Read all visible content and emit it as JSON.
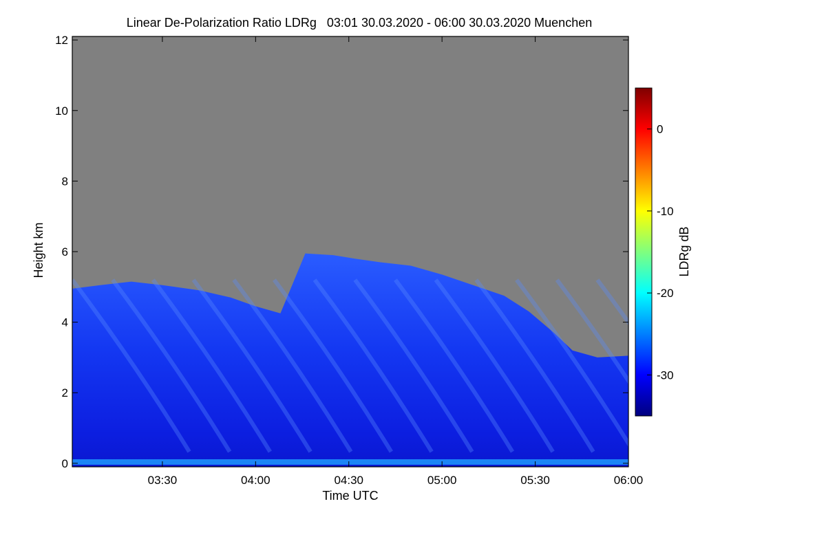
{
  "chart_data": {
    "type": "heatmap",
    "title": "Linear De-Polarization Ratio LDRg   03:01 30.03.2020 - 06:00 30.03.2020 Muenchen",
    "xlabel": "Time UTC",
    "ylabel": "Height km",
    "x_range_minutes_utc": [
      181,
      360
    ],
    "x_ticks": [
      {
        "label": "03:30",
        "minutes": 210
      },
      {
        "label": "04:00",
        "minutes": 240
      },
      {
        "label": "04:30",
        "minutes": 270
      },
      {
        "label": "05:00",
        "minutes": 300
      },
      {
        "label": "05:30",
        "minutes": 330
      },
      {
        "label": "06:00",
        "minutes": 360
      }
    ],
    "y_range_km": [
      -0.1,
      12.1
    ],
    "y_ticks": [
      0,
      2,
      4,
      6,
      8,
      10,
      12
    ],
    "colorbar": {
      "label": "LDRg dB",
      "range_db": [
        -35,
        5
      ],
      "ticks": [
        0,
        -10,
        -20,
        -30
      ],
      "colormap": [
        "#00007f",
        "#0000ff",
        "#007fff",
        "#00ffff",
        "#7fff7f",
        "#ffff00",
        "#ff7f00",
        "#ff0000",
        "#7f0000"
      ]
    },
    "no_signal_color": "#808080",
    "signal_top_profile": [
      {
        "minutes": 181,
        "height_km": 4.95
      },
      {
        "minutes": 190,
        "height_km": 5.05
      },
      {
        "minutes": 200,
        "height_km": 5.15
      },
      {
        "minutes": 210,
        "height_km": 5.05
      },
      {
        "minutes": 222,
        "height_km": 4.9
      },
      {
        "minutes": 232,
        "height_km": 4.7
      },
      {
        "minutes": 240,
        "height_km": 4.45
      },
      {
        "minutes": 248,
        "height_km": 4.25
      },
      {
        "minutes": 256,
        "height_km": 5.95
      },
      {
        "minutes": 265,
        "height_km": 5.9
      },
      {
        "minutes": 272,
        "height_km": 5.8
      },
      {
        "minutes": 280,
        "height_km": 5.7
      },
      {
        "minutes": 290,
        "height_km": 5.6
      },
      {
        "minutes": 300,
        "height_km": 5.35
      },
      {
        "minutes": 310,
        "height_km": 5.05
      },
      {
        "minutes": 320,
        "height_km": 4.75
      },
      {
        "minutes": 328,
        "height_km": 4.3
      },
      {
        "minutes": 336,
        "height_km": 3.7
      },
      {
        "minutes": 342,
        "height_km": 3.2
      },
      {
        "minutes": 350,
        "height_km": 3.0
      },
      {
        "minutes": 360,
        "height_km": 3.05
      }
    ],
    "typical_ldr_db_in_cloud": -28
  }
}
